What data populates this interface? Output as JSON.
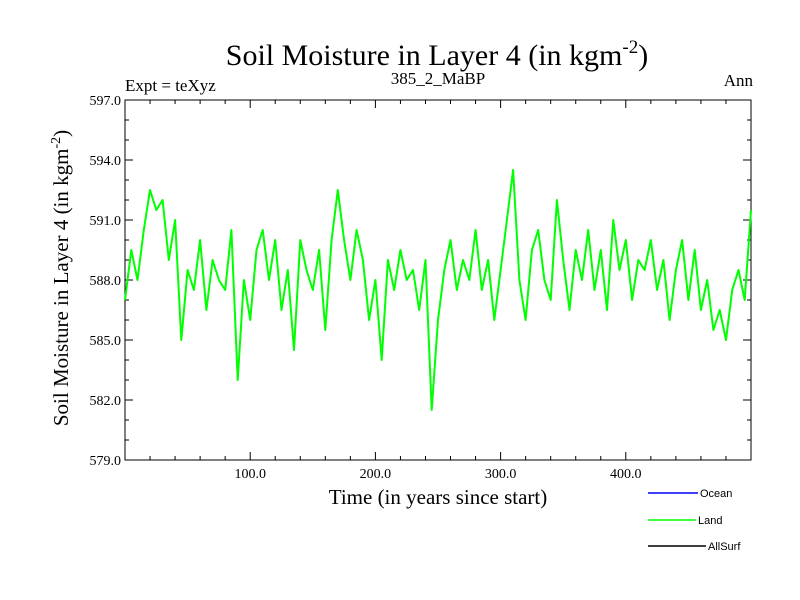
{
  "chart_data": {
    "type": "line",
    "title": "Soil Moisture in Layer 4 (in kgm",
    "title_sup": "-2",
    "title_close": ")",
    "left_label": "Expt = teXyz",
    "center_label": "385_2_MaBP",
    "right_label": "Ann",
    "xlabel": "Time (in years since start)",
    "ylabel": "Soil Moisture in Layer 4 (in kgm",
    "ylabel_sup": "-2",
    "ylabel_close": ")",
    "xlim": [
      0,
      500
    ],
    "ylim": [
      579.0,
      597.0
    ],
    "xticks": [
      100,
      200,
      300,
      400
    ],
    "xtick_labels": [
      "100.0",
      "200.0",
      "300.0",
      "400.0"
    ],
    "yticks": [
      579,
      582,
      585,
      588,
      591,
      594,
      597
    ],
    "ytick_labels": [
      "579.0",
      "582.0",
      "585.0",
      "588.0",
      "591.0",
      "594.0",
      "597.0"
    ],
    "legend": [
      {
        "name": "Ocean",
        "color": "#0000ff"
      },
      {
        "name": "Land",
        "color": "#00ff00"
      },
      {
        "name": "AllSurf",
        "color": "#000000"
      }
    ],
    "legend_position": "bottom-right",
    "series": [
      {
        "name": "Land",
        "color": "#00ff00",
        "x": [
          0,
          5,
          10,
          15,
          20,
          25,
          30,
          35,
          40,
          45,
          50,
          55,
          60,
          65,
          70,
          75,
          80,
          85,
          90,
          95,
          100,
          105,
          110,
          115,
          120,
          125,
          130,
          135,
          140,
          145,
          150,
          155,
          160,
          165,
          170,
          175,
          180,
          185,
          190,
          195,
          200,
          205,
          210,
          215,
          220,
          225,
          230,
          235,
          240,
          245,
          250,
          255,
          260,
          265,
          270,
          275,
          280,
          285,
          290,
          295,
          300,
          305,
          310,
          315,
          320,
          325,
          330,
          335,
          340,
          345,
          350,
          355,
          360,
          365,
          370,
          375,
          380,
          385,
          390,
          395,
          400,
          405,
          410,
          415,
          420,
          425,
          430,
          435,
          440,
          445,
          450,
          455,
          460,
          465,
          470,
          475,
          480,
          485,
          490,
          495,
          500
        ],
        "values": [
          587.0,
          589.5,
          588.0,
          590.5,
          592.5,
          591.5,
          592.0,
          589.0,
          591.0,
          585.0,
          588.5,
          587.5,
          590.0,
          586.5,
          589.0,
          588.0,
          587.5,
          590.5,
          583.0,
          588.0,
          586.0,
          589.5,
          590.5,
          588.0,
          590.0,
          586.5,
          588.5,
          584.5,
          590.0,
          588.5,
          587.5,
          589.5,
          585.5,
          590.0,
          592.5,
          590.0,
          588.0,
          590.5,
          589.0,
          586.0,
          588.0,
          584.0,
          589.0,
          587.5,
          589.5,
          588.0,
          588.5,
          586.5,
          589.0,
          581.5,
          586.0,
          588.5,
          590.0,
          587.5,
          589.0,
          588.0,
          590.5,
          587.5,
          589.0,
          586.0,
          588.5,
          591.0,
          593.5,
          588.0,
          586.0,
          589.5,
          590.5,
          588.0,
          587.0,
          592.0,
          589.0,
          586.5,
          589.5,
          588.0,
          590.5,
          587.5,
          589.5,
          586.5,
          591.0,
          588.5,
          590.0,
          587.0,
          589.0,
          588.5,
          590.0,
          587.5,
          589.0,
          586.0,
          588.5,
          590.0,
          587.0,
          589.5,
          586.5,
          588.0,
          585.5,
          586.5,
          585.0,
          587.5,
          588.5,
          587.0,
          591.5
        ]
      }
    ]
  }
}
